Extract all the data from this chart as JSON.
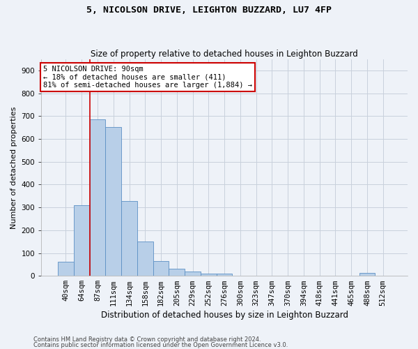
{
  "title": "5, NICOLSON DRIVE, LEIGHTON BUZZARD, LU7 4FP",
  "subtitle": "Size of property relative to detached houses in Leighton Buzzard",
  "xlabel": "Distribution of detached houses by size in Leighton Buzzard",
  "ylabel": "Number of detached properties",
  "footnote1": "Contains HM Land Registry data © Crown copyright and database right 2024.",
  "footnote2": "Contains public sector information licensed under the Open Government Licence v3.0.",
  "bin_labels": [
    "40sqm",
    "64sqm",
    "87sqm",
    "111sqm",
    "134sqm",
    "158sqm",
    "182sqm",
    "205sqm",
    "229sqm",
    "252sqm",
    "276sqm",
    "300sqm",
    "323sqm",
    "347sqm",
    "370sqm",
    "394sqm",
    "418sqm",
    "441sqm",
    "465sqm",
    "488sqm",
    "512sqm"
  ],
  "bar_values": [
    62,
    310,
    686,
    653,
    328,
    150,
    65,
    30,
    18,
    11,
    9,
    0,
    0,
    0,
    0,
    0,
    0,
    0,
    0,
    12,
    0
  ],
  "bar_color": "#b8cfe8",
  "bar_edge_color": "#5b8fc4",
  "vline_color": "#cc0000",
  "vline_x": 1.5,
  "annotation_text": "5 NICOLSON DRIVE: 90sqm\n← 18% of detached houses are smaller (411)\n81% of semi-detached houses are larger (1,884) →",
  "annotation_box_color": "#ffffff",
  "annotation_box_edge_color": "#cc0000",
  "ylim": [
    0,
    950
  ],
  "yticks": [
    0,
    100,
    200,
    300,
    400,
    500,
    600,
    700,
    800,
    900
  ],
  "grid_color": "#c8d0dc",
  "bg_color": "#eef2f8",
  "title_fontsize": 9.5,
  "subtitle_fontsize": 8.5,
  "ylabel_fontsize": 8,
  "xlabel_fontsize": 8.5,
  "tick_fontsize": 7.5
}
